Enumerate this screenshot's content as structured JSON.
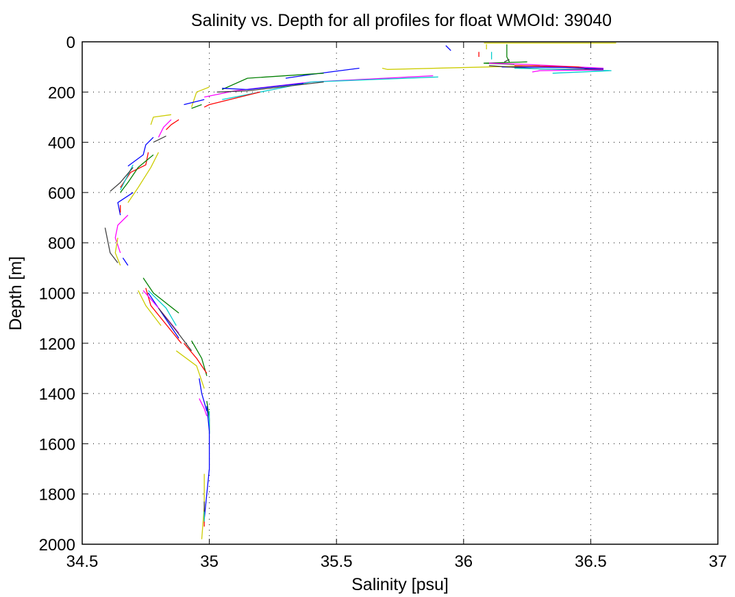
{
  "chart_data": {
    "type": "line",
    "title": "Salinity vs. Depth for all profiles for float WMOId: 39040",
    "xlabel": "Salinity [psu]",
    "ylabel": "Depth [m]",
    "xlim": [
      34.5,
      37
    ],
    "ylim": [
      2000,
      0
    ],
    "y_reversed": true,
    "grid": true,
    "x_ticks": [
      34.5,
      35,
      35.5,
      36,
      36.5,
      37
    ],
    "x_tick_labels": [
      "34.5",
      "35",
      "35.5",
      "36",
      "36.5",
      "37"
    ],
    "y_ticks": [
      0,
      200,
      400,
      600,
      800,
      1000,
      1200,
      1400,
      1600,
      1800,
      2000
    ],
    "y_tick_labels": [
      "0",
      "200",
      "400",
      "600",
      "800",
      "1000",
      "1200",
      "1400",
      "1600",
      "1800",
      "2000"
    ],
    "series": [
      {
        "color": "#0000ff",
        "points": [
          [
            35.93,
            15
          ],
          [
            35.95,
            35
          ]
        ]
      },
      {
        "color": "#ff0000",
        "points": [
          [
            36.06,
            40
          ],
          [
            36.06,
            60
          ]
        ]
      },
      {
        "color": "#00cccc",
        "points": [
          [
            36.11,
            40
          ],
          [
            36.11,
            70
          ]
        ]
      },
      {
        "color": "#cccc00",
        "points": [
          [
            36.09,
            10
          ],
          [
            36.09,
            30
          ]
        ]
      },
      {
        "color": "#cccc00",
        "points": [
          [
            36.6,
            5
          ],
          [
            36.08,
            5
          ]
        ]
      },
      {
        "color": "#007f00",
        "points": [
          [
            36.17,
            10
          ],
          [
            36.17,
            60
          ],
          [
            36.18,
            80
          ]
        ]
      },
      {
        "color": "#404040",
        "points": [
          [
            36.18,
            70
          ],
          [
            36.16,
            80
          ]
        ]
      },
      {
        "color": "#007f00",
        "points": [
          [
            36.25,
            80
          ],
          [
            36.08,
            85
          ],
          [
            36.2,
            90
          ]
        ]
      },
      {
        "color": "#cccc00",
        "points": [
          [
            36.3,
            95
          ],
          [
            35.7,
            110
          ],
          [
            35.68,
            105
          ]
        ]
      },
      {
        "color": "#ff00ff",
        "points": [
          [
            36.1,
            85
          ],
          [
            36.25,
            90
          ],
          [
            36.55,
            105
          ]
        ]
      },
      {
        "color": "#ff0000",
        "points": [
          [
            36.2,
            95
          ],
          [
            36.45,
            100
          ],
          [
            36.5,
            110
          ]
        ]
      },
      {
        "color": "#0000ff",
        "points": [
          [
            36.15,
            100
          ],
          [
            36.4,
            102
          ],
          [
            36.55,
            108
          ]
        ]
      },
      {
        "color": "#404040",
        "points": [
          [
            36.1,
            95
          ],
          [
            36.3,
            108
          ],
          [
            36.55,
            110
          ]
        ]
      },
      {
        "color": "#00cccc",
        "points": [
          [
            36.2,
            105
          ],
          [
            36.58,
            115
          ],
          [
            36.35,
            125
          ]
        ]
      },
      {
        "color": "#ff00ff",
        "points": [
          [
            36.55,
            112
          ],
          [
            36.3,
            115
          ],
          [
            36.27,
            120
          ]
        ]
      },
      {
        "color": "#0000ff",
        "points": [
          [
            35.59,
            105
          ],
          [
            35.4,
            130
          ],
          [
            35.3,
            145
          ]
        ]
      },
      {
        "color": "#007f00",
        "points": [
          [
            35.45,
            125
          ],
          [
            35.15,
            145
          ],
          [
            35.05,
            190
          ]
        ]
      },
      {
        "color": "#ff00ff",
        "points": [
          [
            35.88,
            135
          ],
          [
            35.4,
            160
          ],
          [
            35.1,
            195
          ],
          [
            34.98,
            220
          ]
        ]
      },
      {
        "color": "#00cccc",
        "points": [
          [
            35.9,
            140
          ],
          [
            35.4,
            160
          ],
          [
            35.1,
            220
          ],
          [
            35.05,
            230
          ]
        ]
      },
      {
        "color": "#404040",
        "points": [
          [
            35.45,
            160
          ],
          [
            35.15,
            195
          ],
          [
            35.03,
            200
          ]
        ]
      },
      {
        "color": "#0000ff",
        "points": [
          [
            35.37,
            165
          ],
          [
            35.15,
            190
          ],
          [
            35.05,
            185
          ]
        ]
      },
      {
        "color": "#ff0000",
        "points": [
          [
            35.2,
            200
          ],
          [
            35.0,
            250
          ],
          [
            34.98,
            260
          ]
        ]
      },
      {
        "color": "#cccc00",
        "points": [
          [
            35.0,
            180
          ],
          [
            34.95,
            200
          ],
          [
            34.93,
            260
          ]
        ]
      },
      {
        "color": "#0000ff",
        "points": [
          [
            34.98,
            230
          ],
          [
            34.9,
            250
          ]
        ]
      },
      {
        "color": "#007f00",
        "points": [
          [
            34.97,
            250
          ],
          [
            34.93,
            265
          ]
        ]
      },
      {
        "color": "#cccc00",
        "points": [
          [
            34.85,
            290
          ],
          [
            34.78,
            300
          ],
          [
            34.77,
            330
          ]
        ]
      },
      {
        "color": "#ff0000",
        "points": [
          [
            34.88,
            310
          ],
          [
            34.85,
            330
          ],
          [
            34.83,
            350
          ]
        ]
      },
      {
        "color": "#ff00ff",
        "points": [
          [
            34.85,
            310
          ],
          [
            34.82,
            340
          ],
          [
            34.8,
            380
          ]
        ]
      },
      {
        "color": "#404040",
        "points": [
          [
            34.83,
            375
          ],
          [
            34.8,
            390
          ],
          [
            34.78,
            400
          ]
        ]
      },
      {
        "color": "#0000ff",
        "points": [
          [
            34.78,
            380
          ],
          [
            34.75,
            410
          ],
          [
            34.74,
            450
          ],
          [
            34.68,
            495
          ]
        ]
      },
      {
        "color": "#ff0000",
        "points": [
          [
            34.76,
            440
          ],
          [
            34.75,
            490
          ],
          [
            34.69,
            520
          ],
          [
            34.65,
            580
          ]
        ]
      },
      {
        "color": "#007f00",
        "points": [
          [
            34.78,
            450
          ],
          [
            34.72,
            500
          ],
          [
            34.68,
            560
          ],
          [
            34.65,
            600
          ]
        ]
      },
      {
        "color": "#00cccc",
        "points": [
          [
            34.7,
            490
          ],
          [
            34.67,
            550
          ],
          [
            34.65,
            590
          ]
        ]
      },
      {
        "color": "#404040",
        "points": [
          [
            34.7,
            500
          ],
          [
            34.65,
            560
          ],
          [
            34.61,
            595
          ]
        ]
      },
      {
        "color": "#cccc00",
        "points": [
          [
            34.8,
            440
          ],
          [
            34.77,
            500
          ],
          [
            34.72,
            580
          ],
          [
            34.68,
            640
          ]
        ]
      },
      {
        "color": "#0000ff",
        "points": [
          [
            34.7,
            600
          ],
          [
            34.64,
            640
          ],
          [
            34.65,
            690
          ]
        ]
      },
      {
        "color": "#ff0000",
        "points": [
          [
            34.65,
            650
          ],
          [
            34.65,
            680
          ]
        ]
      },
      {
        "color": "#ff00ff",
        "points": [
          [
            34.68,
            690
          ],
          [
            34.64,
            730
          ],
          [
            34.63,
            780
          ],
          [
            34.65,
            840
          ]
        ]
      },
      {
        "color": "#cccc00",
        "points": [
          [
            34.64,
            780
          ],
          [
            34.63,
            840
          ],
          [
            34.65,
            890
          ]
        ]
      },
      {
        "color": "#404040",
        "points": [
          [
            34.59,
            740
          ],
          [
            34.61,
            840
          ],
          [
            34.64,
            880
          ]
        ]
      },
      {
        "color": "#0000ff",
        "points": [
          [
            34.66,
            860
          ],
          [
            34.68,
            890
          ]
        ]
      },
      {
        "color": "#007f00",
        "points": [
          [
            34.74,
            940
          ],
          [
            34.78,
            1000
          ],
          [
            34.88,
            1080
          ]
        ]
      },
      {
        "color": "#ff0000",
        "points": [
          [
            34.75,
            980
          ],
          [
            34.77,
            1050
          ],
          [
            34.85,
            1150
          ],
          [
            34.89,
            1200
          ]
        ]
      },
      {
        "color": "#0000ff",
        "points": [
          [
            34.76,
            1000
          ],
          [
            34.82,
            1090
          ],
          [
            34.88,
            1180
          ]
        ]
      },
      {
        "color": "#cccc00",
        "points": [
          [
            34.72,
            990
          ],
          [
            34.75,
            1050
          ],
          [
            34.81,
            1130
          ]
        ]
      },
      {
        "color": "#00cccc",
        "points": [
          [
            34.76,
            990
          ],
          [
            34.83,
            1060
          ],
          [
            34.87,
            1130
          ]
        ]
      },
      {
        "color": "#ff00ff",
        "points": [
          [
            34.74,
            990
          ],
          [
            34.8,
            1060
          ],
          [
            34.88,
            1160
          ]
        ]
      },
      {
        "color": "#404040",
        "points": [
          [
            34.8,
            1060
          ],
          [
            34.87,
            1150
          ],
          [
            34.93,
            1230
          ]
        ]
      },
      {
        "color": "#007f00",
        "points": [
          [
            34.93,
            1190
          ],
          [
            34.97,
            1260
          ],
          [
            34.99,
            1330
          ]
        ]
      },
      {
        "color": "#ff0000",
        "points": [
          [
            34.9,
            1200
          ],
          [
            34.95,
            1260
          ],
          [
            34.99,
            1320
          ]
        ]
      },
      {
        "color": "#cccc00",
        "points": [
          [
            34.87,
            1230
          ],
          [
            34.95,
            1290
          ],
          [
            34.98,
            1380
          ]
        ]
      },
      {
        "color": "#0000ff",
        "points": [
          [
            34.96,
            1340
          ],
          [
            34.97,
            1400
          ],
          [
            34.99,
            1470
          ]
        ]
      },
      {
        "color": "#ff00ff",
        "points": [
          [
            34.96,
            1420
          ],
          [
            34.98,
            1460
          ],
          [
            34.99,
            1490
          ]
        ]
      },
      {
        "color": "#007f00",
        "points": [
          [
            34.99,
            1430
          ],
          [
            35.0,
            1500
          ],
          [
            35.0,
            1560
          ]
        ]
      },
      {
        "color": "#00cccc",
        "points": [
          [
            35.0,
            1470
          ],
          [
            35.0,
            1560
          ]
        ]
      },
      {
        "color": "#0000ff",
        "points": [
          [
            34.99,
            1450
          ],
          [
            35.0,
            1550
          ],
          [
            35.0,
            1700
          ],
          [
            34.99,
            1800
          ],
          [
            34.98,
            1900
          ]
        ]
      },
      {
        "color": "#cccc00",
        "points": [
          [
            34.98,
            1720
          ],
          [
            34.98,
            1850
          ],
          [
            34.97,
            1980
          ]
        ]
      },
      {
        "color": "#ff0000",
        "points": [
          [
            34.98,
            1880
          ],
          [
            34.98,
            1930
          ]
        ]
      },
      {
        "color": "#404040",
        "points": [
          [
            34.98,
            1830
          ],
          [
            34.98,
            1900
          ]
        ]
      },
      {
        "color": "#00cccc",
        "points": [
          [
            34.98,
            1870
          ],
          [
            34.98,
            1910
          ]
        ]
      }
    ]
  }
}
